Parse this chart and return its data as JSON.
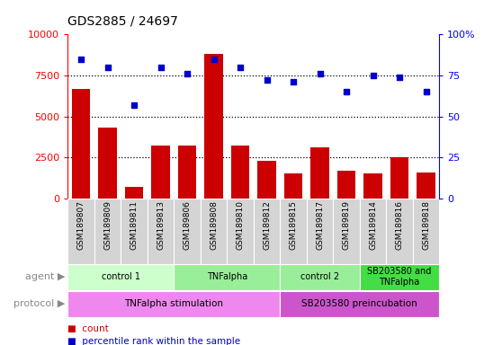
{
  "title": "GDS2885 / 24697",
  "samples": [
    "GSM189807",
    "GSM189809",
    "GSM189811",
    "GSM189813",
    "GSM189806",
    "GSM189808",
    "GSM189810",
    "GSM189812",
    "GSM189815",
    "GSM189817",
    "GSM189819",
    "GSM189814",
    "GSM189816",
    "GSM189818"
  ],
  "counts": [
    6700,
    4300,
    700,
    3200,
    3200,
    8800,
    3200,
    2300,
    1500,
    3100,
    1700,
    1500,
    2500,
    1600
  ],
  "percentiles": [
    85,
    80,
    57,
    80,
    76,
    85,
    80,
    72,
    71,
    76,
    65,
    75,
    74,
    65
  ],
  "ylim_left": [
    0,
    10000
  ],
  "ylim_right": [
    0,
    100
  ],
  "yticks_left": [
    0,
    2500,
    5000,
    7500,
    10000
  ],
  "yticks_right": [
    0,
    25,
    50,
    75,
    100
  ],
  "bar_color": "#cc0000",
  "scatter_color": "#0000cc",
  "agent_groups": [
    {
      "label": "control 1",
      "start": 0,
      "end": 3,
      "color": "#ccffcc"
    },
    {
      "label": "TNFalpha",
      "start": 4,
      "end": 7,
      "color": "#99ee99"
    },
    {
      "label": "control 2",
      "start": 8,
      "end": 10,
      "color": "#99ee99"
    },
    {
      "label": "SB203580 and\nTNFalpha",
      "start": 11,
      "end": 13,
      "color": "#44dd44"
    }
  ],
  "protocol_groups": [
    {
      "label": "TNFalpha stimulation",
      "start": 0,
      "end": 7,
      "color": "#ee88ee"
    },
    {
      "label": "SB203580 preincubation",
      "start": 8,
      "end": 13,
      "color": "#cc55cc"
    }
  ],
  "sample_col_color": "#d4d4d4",
  "hline_color": "black",
  "hline_style": ":",
  "legend_items": [
    {
      "label": "count",
      "color": "#cc0000"
    },
    {
      "label": "percentile rank within the sample",
      "color": "#0000cc"
    }
  ]
}
